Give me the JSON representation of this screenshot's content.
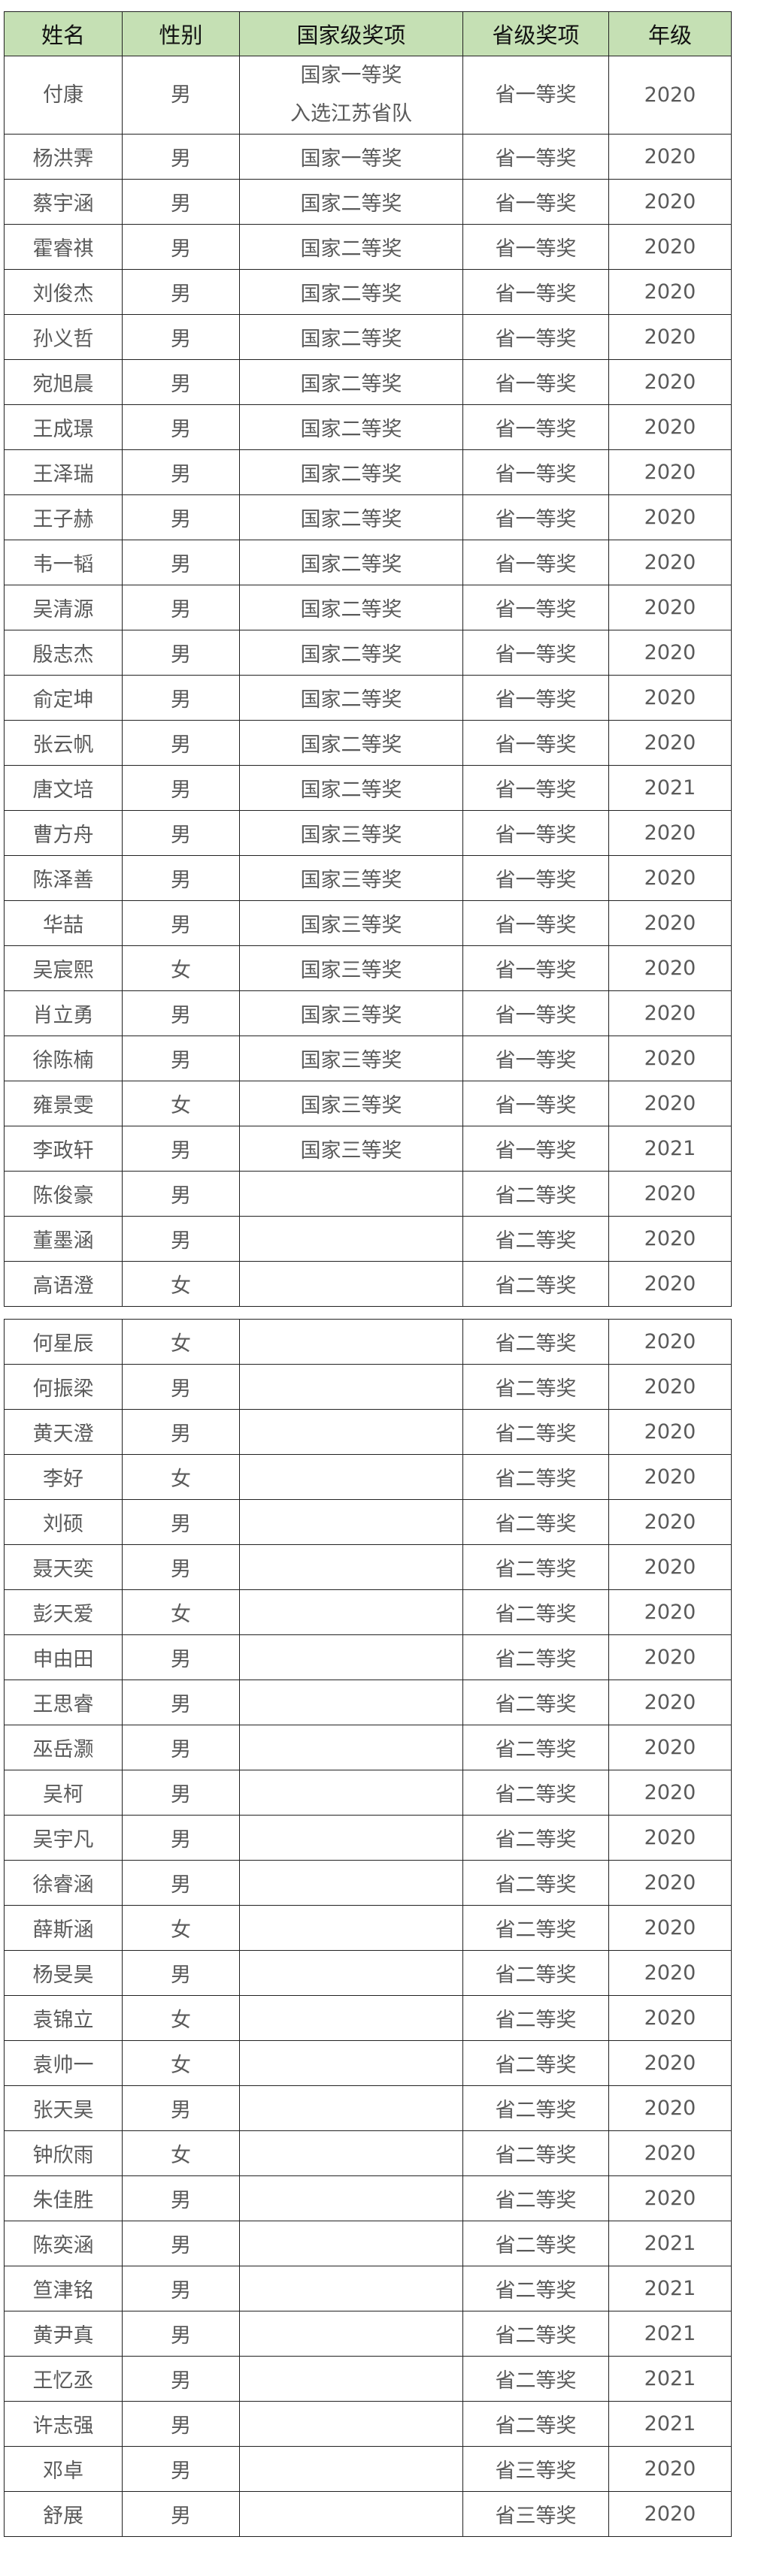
{
  "header": {
    "name": "姓名",
    "gender": "性别",
    "national": "国家级奖项",
    "provincial": "省级奖项",
    "year": "年级"
  },
  "table1_rows": [
    {
      "name": "付康",
      "gender": "男",
      "national": [
        "国家一等奖",
        "入选江苏省队"
      ],
      "provincial": "省一等奖",
      "year": "2020"
    },
    {
      "name": "杨洪霁",
      "gender": "男",
      "national": [
        "国家一等奖"
      ],
      "provincial": "省一等奖",
      "year": "2020"
    },
    {
      "name": "蔡宇涵",
      "gender": "男",
      "national": [
        "国家二等奖"
      ],
      "provincial": "省一等奖",
      "year": "2020"
    },
    {
      "name": "霍睿祺",
      "gender": "男",
      "national": [
        "国家二等奖"
      ],
      "provincial": "省一等奖",
      "year": "2020"
    },
    {
      "name": "刘俊杰",
      "gender": "男",
      "national": [
        "国家二等奖"
      ],
      "provincial": "省一等奖",
      "year": "2020"
    },
    {
      "name": "孙义哲",
      "gender": "男",
      "national": [
        "国家二等奖"
      ],
      "provincial": "省一等奖",
      "year": "2020"
    },
    {
      "name": "宛旭晨",
      "gender": "男",
      "national": [
        "国家二等奖"
      ],
      "provincial": "省一等奖",
      "year": "2020"
    },
    {
      "name": "王成璟",
      "gender": "男",
      "national": [
        "国家二等奖"
      ],
      "provincial": "省一等奖",
      "year": "2020"
    },
    {
      "name": "王泽瑞",
      "gender": "男",
      "national": [
        "国家二等奖"
      ],
      "provincial": "省一等奖",
      "year": "2020"
    },
    {
      "name": "王子赫",
      "gender": "男",
      "national": [
        "国家二等奖"
      ],
      "provincial": "省一等奖",
      "year": "2020"
    },
    {
      "name": "韦一韬",
      "gender": "男",
      "national": [
        "国家二等奖"
      ],
      "provincial": "省一等奖",
      "year": "2020"
    },
    {
      "name": "吴清源",
      "gender": "男",
      "national": [
        "国家二等奖"
      ],
      "provincial": "省一等奖",
      "year": "2020"
    },
    {
      "name": "殷志杰",
      "gender": "男",
      "national": [
        "国家二等奖"
      ],
      "provincial": "省一等奖",
      "year": "2020"
    },
    {
      "name": "俞定坤",
      "gender": "男",
      "national": [
        "国家二等奖"
      ],
      "provincial": "省一等奖",
      "year": "2020"
    },
    {
      "name": "张云帆",
      "gender": "男",
      "national": [
        "国家二等奖"
      ],
      "provincial": "省一等奖",
      "year": "2020"
    },
    {
      "name": "唐文培",
      "gender": "男",
      "national": [
        "国家二等奖"
      ],
      "provincial": "省一等奖",
      "year": "2021"
    },
    {
      "name": "曹方舟",
      "gender": "男",
      "national": [
        "国家三等奖"
      ],
      "provincial": "省一等奖",
      "year": "2020"
    },
    {
      "name": "陈泽善",
      "gender": "男",
      "national": [
        "国家三等奖"
      ],
      "provincial": "省一等奖",
      "year": "2020"
    },
    {
      "name": "华喆",
      "gender": "男",
      "national": [
        "国家三等奖"
      ],
      "provincial": "省一等奖",
      "year": "2020"
    },
    {
      "name": "吴宸熙",
      "gender": "女",
      "national": [
        "国家三等奖"
      ],
      "provincial": "省一等奖",
      "year": "2020"
    },
    {
      "name": "肖立勇",
      "gender": "男",
      "national": [
        "国家三等奖"
      ],
      "provincial": "省一等奖",
      "year": "2020"
    },
    {
      "name": "徐陈楠",
      "gender": "男",
      "national": [
        "国家三等奖"
      ],
      "provincial": "省一等奖",
      "year": "2020"
    },
    {
      "name": "雍景雯",
      "gender": "女",
      "national": [
        "国家三等奖"
      ],
      "provincial": "省一等奖",
      "year": "2020"
    },
    {
      "name": "李政轩",
      "gender": "男",
      "national": [
        "国家三等奖"
      ],
      "provincial": "省一等奖",
      "year": "2021"
    },
    {
      "name": "陈俊豪",
      "gender": "男",
      "national": [],
      "provincial": "省二等奖",
      "year": "2020"
    },
    {
      "name": "董墨涵",
      "gender": "男",
      "national": [],
      "provincial": "省二等奖",
      "year": "2020"
    },
    {
      "name": "高语澄",
      "gender": "女",
      "national": [],
      "provincial": "省二等奖",
      "year": "2020"
    }
  ],
  "table2_rows": [
    {
      "name": "何星辰",
      "gender": "女",
      "national": [],
      "provincial": "省二等奖",
      "year": "2020"
    },
    {
      "name": "何振梁",
      "gender": "男",
      "national": [],
      "provincial": "省二等奖",
      "year": "2020"
    },
    {
      "name": "黄天澄",
      "gender": "男",
      "national": [],
      "provincial": "省二等奖",
      "year": "2020"
    },
    {
      "name": "李好",
      "gender": "女",
      "national": [],
      "provincial": "省二等奖",
      "year": "2020"
    },
    {
      "name": "刘硕",
      "gender": "男",
      "national": [],
      "provincial": "省二等奖",
      "year": "2020"
    },
    {
      "name": "聂天奕",
      "gender": "男",
      "national": [],
      "provincial": "省二等奖",
      "year": "2020"
    },
    {
      "name": "彭天爱",
      "gender": "女",
      "national": [],
      "provincial": "省二等奖",
      "year": "2020"
    },
    {
      "name": "申由田",
      "gender": "男",
      "national": [],
      "provincial": "省二等奖",
      "year": "2020"
    },
    {
      "name": "王思睿",
      "gender": "男",
      "national": [],
      "provincial": "省二等奖",
      "year": "2020"
    },
    {
      "name": "巫岳灏",
      "gender": "男",
      "national": [],
      "provincial": "省二等奖",
      "year": "2020"
    },
    {
      "name": "吴柯",
      "gender": "男",
      "national": [],
      "provincial": "省二等奖",
      "year": "2020"
    },
    {
      "name": "吴宇凡",
      "gender": "男",
      "national": [],
      "provincial": "省二等奖",
      "year": "2020"
    },
    {
      "name": "徐睿涵",
      "gender": "男",
      "national": [],
      "provincial": "省二等奖",
      "year": "2020"
    },
    {
      "name": "薛斯涵",
      "gender": "女",
      "national": [],
      "provincial": "省二等奖",
      "year": "2020"
    },
    {
      "name": "杨旻昊",
      "gender": "男",
      "national": [],
      "provincial": "省二等奖",
      "year": "2020"
    },
    {
      "name": "袁锦立",
      "gender": "女",
      "national": [],
      "provincial": "省二等奖",
      "year": "2020"
    },
    {
      "name": "袁帅一",
      "gender": "女",
      "national": [],
      "provincial": "省二等奖",
      "year": "2020"
    },
    {
      "name": "张天昊",
      "gender": "男",
      "national": [],
      "provincial": "省二等奖",
      "year": "2020"
    },
    {
      "name": "钟欣雨",
      "gender": "女",
      "national": [],
      "provincial": "省二等奖",
      "year": "2020"
    },
    {
      "name": "朱佳胜",
      "gender": "男",
      "national": [],
      "provincial": "省二等奖",
      "year": "2020"
    },
    {
      "name": "陈奕涵",
      "gender": "男",
      "national": [],
      "provincial": "省二等奖",
      "year": "2021"
    },
    {
      "name": "笪津铭",
      "gender": "男",
      "national": [],
      "provincial": "省二等奖",
      "year": "2021"
    },
    {
      "name": "黄尹真",
      "gender": "男",
      "national": [],
      "provincial": "省二等奖",
      "year": "2021"
    },
    {
      "name": "王忆丞",
      "gender": "男",
      "national": [],
      "provincial": "省二等奖",
      "year": "2021"
    },
    {
      "name": "许志强",
      "gender": "男",
      "national": [],
      "provincial": "省二等奖",
      "year": "2021"
    },
    {
      "name": "邓卓",
      "gender": "男",
      "national": [],
      "provincial": "省三等奖",
      "year": "2020"
    },
    {
      "name": "舒展",
      "gender": "男",
      "national": [],
      "provincial": "省三等奖",
      "year": "2020"
    }
  ],
  "colors": {
    "header_bg": "#c5e0b4",
    "border": "#222222",
    "text": "#5a5a5a"
  }
}
